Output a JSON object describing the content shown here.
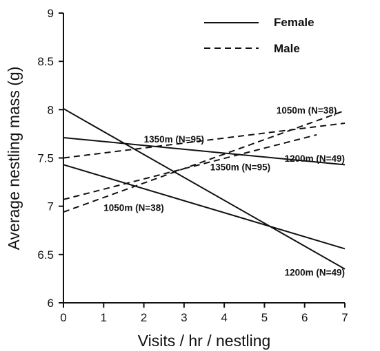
{
  "chart_data": {
    "type": "line",
    "title": "",
    "xlabel": "Visits / hr / nestling",
    "ylabel": "Average nestling mass (g)",
    "xlim": [
      0,
      7
    ],
    "ylim": [
      6,
      9
    ],
    "xticks": [
      "0",
      "1",
      "2",
      "3",
      "4",
      "5",
      "6",
      "7"
    ],
    "yticks": [
      "6",
      "6.5",
      "7",
      "7.5",
      "8",
      "8.5",
      "9"
    ],
    "grid": false,
    "legend": {
      "placement": "top-right",
      "entries": [
        {
          "name": "Female",
          "style": "solid"
        },
        {
          "name": "Male",
          "style": "dashed"
        }
      ]
    },
    "series": [
      {
        "name": "Female",
        "label": "1350m (N=95)",
        "style": "solid",
        "x": [
          0,
          7
        ],
        "y": [
          7.71,
          7.43
        ]
      },
      {
        "name": "Female",
        "label": "1050m (N=38)",
        "style": "solid",
        "x": [
          0,
          7
        ],
        "y": [
          7.43,
          6.56
        ]
      },
      {
        "name": "Female",
        "label": "1200m (N=49)",
        "style": "solid",
        "x": [
          0,
          7
        ],
        "y": [
          8.01,
          6.35
        ]
      },
      {
        "name": "Male",
        "label": "1350m (N=95)",
        "style": "dashed",
        "x": [
          0,
          7
        ],
        "y": [
          7.5,
          7.86
        ]
      },
      {
        "name": "Male",
        "label": "1050m (N=38)",
        "style": "dashed",
        "x": [
          0,
          7
        ],
        "y": [
          6.94,
          7.99
        ]
      },
      {
        "name": "Male",
        "label": "1200m (N=49)",
        "style": "dashed",
        "x": [
          0,
          6.3
        ],
        "y": [
          7.07,
          7.74
        ]
      }
    ],
    "annotations": [
      {
        "text": "1050m (N=38)",
        "x": 6.8,
        "y": 7.96,
        "anchor": "end"
      },
      {
        "text": "1350m (N=95)",
        "x": 2.0,
        "y": 7.66,
        "anchor": "start"
      },
      {
        "text": "1200m (N=49)",
        "x": 7.0,
        "y": 7.46,
        "anchor": "end"
      },
      {
        "text": "1350m (N=95)",
        "x": 4.4,
        "y": 7.37,
        "anchor": "middle"
      },
      {
        "text": "1050m (N=38)",
        "x": 1.0,
        "y": 6.95,
        "anchor": "start"
      },
      {
        "text": "1200m (N=49)",
        "x": 7.0,
        "y": 6.28,
        "anchor": "end"
      }
    ],
    "colors": {
      "line": "#111111",
      "axis": "#111111",
      "background": "#ffffff"
    }
  }
}
